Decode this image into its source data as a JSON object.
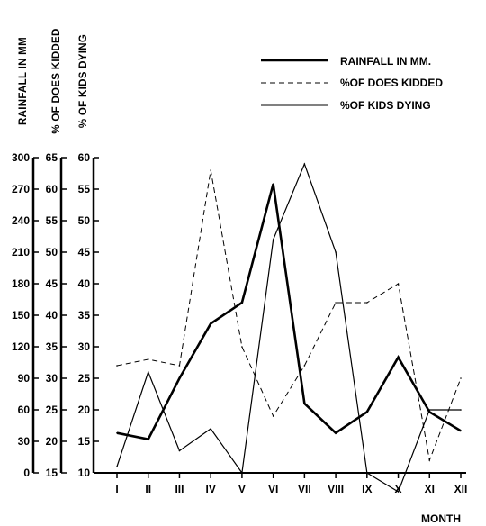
{
  "chart_data": {
    "type": "line",
    "title": "",
    "xlabel": "MONTH",
    "categories": [
      "I",
      "II",
      "III",
      "IV",
      "V",
      "VI",
      "VII",
      "VIII",
      "IX",
      "X",
      "XI",
      "XII"
    ],
    "axes": [
      {
        "label": "RAINFALL IN MM",
        "ylim": [
          0,
          300
        ],
        "ticks": [
          "0",
          "30",
          "60",
          "90",
          "120",
          "150",
          "180",
          "210",
          "240",
          "270",
          "300"
        ]
      },
      {
        "label": "% OF DOES KIDDED",
        "ylim": [
          15,
          65
        ],
        "ticks": [
          "15",
          "20",
          "25",
          "30",
          "35",
          "40",
          "45",
          "50",
          "55",
          "60",
          "65"
        ]
      },
      {
        "label": "% OF KIDS DYING",
        "ylim": [
          10,
          60
        ],
        "ticks": [
          "10",
          "15",
          "20",
          "25",
          "30",
          "35",
          "40",
          "45",
          "50",
          "55",
          "60"
        ]
      }
    ],
    "series": [
      {
        "name": "RAINFALL IN MM.",
        "axis": 0,
        "style": "thick",
        "values": [
          38,
          32,
          90,
          142,
          162,
          275,
          66,
          38,
          58,
          110,
          58,
          40
        ]
      },
      {
        "name": "%OF DOES KIDDED",
        "axis": 1,
        "style": "dashed",
        "values": [
          32,
          33,
          32,
          63,
          35,
          24,
          32,
          42,
          42,
          45,
          17,
          30
        ]
      },
      {
        "name": "%OF KIDS DYING",
        "axis": 2,
        "style": "thin",
        "values": [
          11,
          26,
          13.5,
          17,
          10,
          47,
          59,
          45,
          10,
          7,
          20,
          20
        ]
      }
    ],
    "legend": "top-right"
  }
}
